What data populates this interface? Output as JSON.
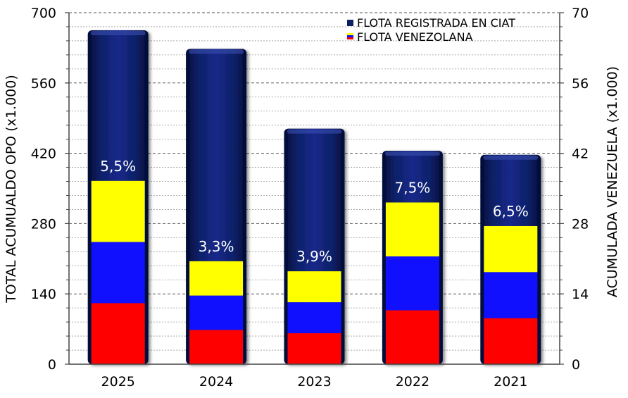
{
  "chart_data": {
    "type": "bar",
    "categories": [
      "2025",
      "2024",
      "2023",
      "2022",
      "2021"
    ],
    "left_axis": {
      "label": "TOTAL ACUMUALDO OPO (x1.000)",
      "ylim": [
        0,
        700
      ],
      "ticks": [
        "0",
        "140",
        "280",
        "420",
        "560",
        "700"
      ]
    },
    "right_axis": {
      "label": "ACUMULADA VENEZUELA (x1.000)",
      "ylim": [
        0,
        70
      ],
      "ticks": [
        "0",
        "14",
        "28",
        "42",
        "56",
        "70"
      ]
    },
    "series": [
      {
        "name": "FLOTA REGISTRADA EN CIAT",
        "axis": "left",
        "color": "#0d1f63",
        "values": [
          665,
          628,
          469,
          425,
          417
        ]
      },
      {
        "name": "FLOTA VENEZOLANA",
        "axis": "right",
        "colors": [
          "#ff0000",
          "#1010ff",
          "#ffff00"
        ],
        "values": [
          36.5,
          20.5,
          18.5,
          32.2,
          27.5
        ]
      }
    ],
    "annotations": [
      "5,5%",
      "3,3%",
      "3,9%",
      "7,5%",
      "6,5%"
    ],
    "grid": true,
    "legend": "top-right"
  }
}
